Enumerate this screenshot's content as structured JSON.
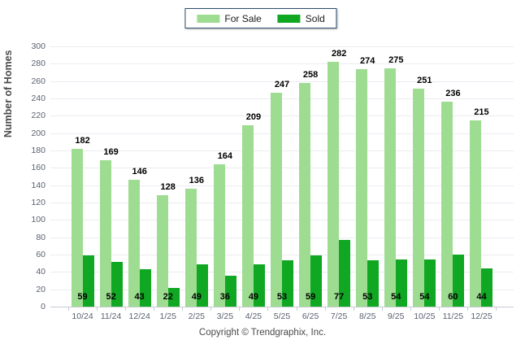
{
  "legend": {
    "items": [
      {
        "label": "For Sale",
        "color": "#9EDC92"
      },
      {
        "label": "Sold",
        "color": "#10A723"
      }
    ]
  },
  "chart_data": {
    "type": "bar",
    "title": "",
    "ylabel": "Number of Homes",
    "xlabel": "",
    "ylim": [
      0,
      300
    ],
    "ytick_step": 20,
    "grid": true,
    "legend_position": "top-center",
    "categories": [
      "10/24",
      "11/24",
      "12/24",
      "1/25",
      "2/25",
      "3/25",
      "4/25",
      "5/25",
      "6/25",
      "7/25",
      "8/25",
      "9/25",
      "10/25",
      "11/25",
      "12/25"
    ],
    "series": [
      {
        "name": "For Sale",
        "color": "#9EDC92",
        "values": [
          182,
          169,
          146,
          128,
          136,
          164,
          209,
          247,
          258,
          282,
          274,
          275,
          251,
          236,
          215
        ],
        "label_position": "above-bar"
      },
      {
        "name": "Sold",
        "color": "#10A723",
        "values": [
          59,
          52,
          43,
          22,
          49,
          36,
          49,
          53,
          59,
          77,
          53,
          54,
          54,
          60,
          44
        ],
        "label_position": "bottom-inside"
      }
    ]
  },
  "footer": {
    "copyright": "Copyright © Trendgraphix, Inc."
  }
}
